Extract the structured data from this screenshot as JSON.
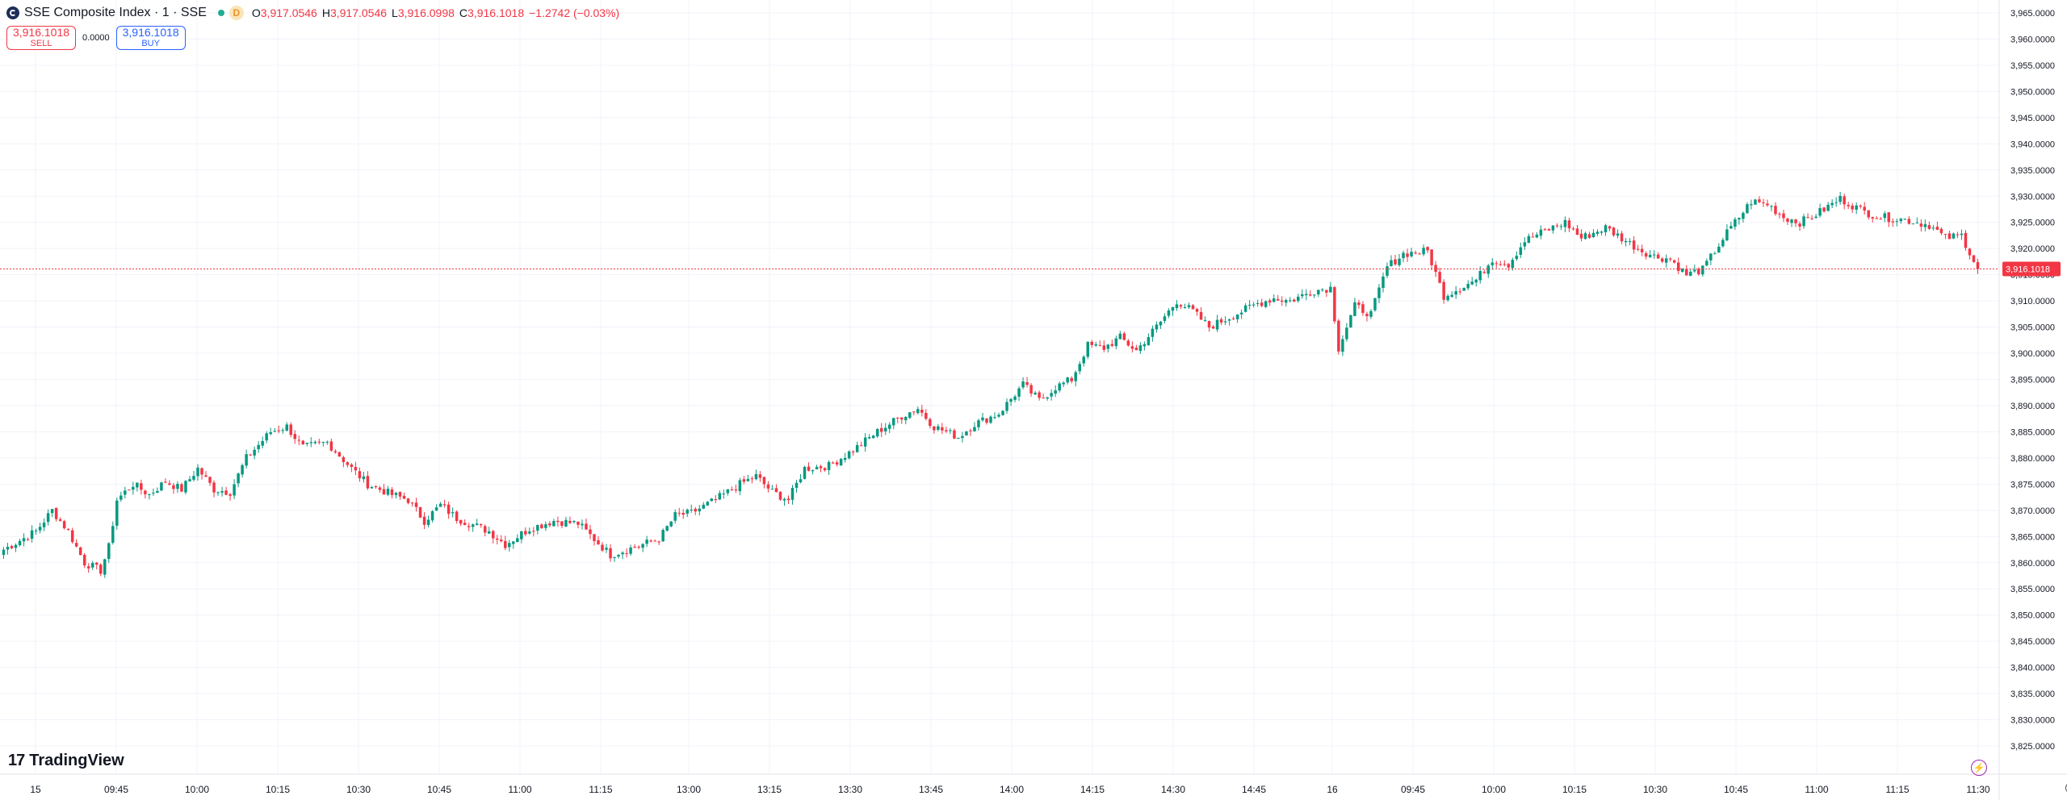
{
  "header": {
    "symbol_title": "SSE Composite Index · 1 · SSE",
    "badge": "D",
    "ohlc": [
      {
        "key": "O",
        "value": "3,917.0546"
      },
      {
        "key": "H",
        "value": "3,917.0546"
      },
      {
        "key": "L",
        "value": "3,916.0998"
      },
      {
        "key": "C",
        "value": "3,916.1018"
      }
    ],
    "change": "−1.2742 (−0.03%)"
  },
  "trade": {
    "sell_price": "3,916.1018",
    "sell_label": "SELL",
    "spread": "0.0000",
    "buy_price": "3,916.1018",
    "buy_label": "BUY"
  },
  "branding": {
    "logo_text": "TradingView",
    "logo_mark": "17"
  },
  "colors": {
    "up": "#089981",
    "down": "#f23645",
    "grid": "#f0f3fa",
    "axis_text": "#131722",
    "price_line": "#f23645"
  },
  "icons": {
    "bolt": "lightning-icon",
    "settings": "gear-icon"
  },
  "chart_data": {
    "type": "candlestick",
    "title": "SSE Composite Index · 1 · SSE",
    "ylim": [
      3825,
      3965
    ],
    "y_ticks": [
      3965,
      3960,
      3955,
      3950,
      3945,
      3940,
      3935,
      3930,
      3925,
      3920,
      3915,
      3910,
      3905,
      3900,
      3895,
      3890,
      3885,
      3880,
      3875,
      3870,
      3865,
      3860,
      3855,
      3850,
      3845,
      3840,
      3835,
      3830,
      3825
    ],
    "x_ticks": [
      "15",
      "09:45",
      "10:00",
      "10:15",
      "10:30",
      "10:45",
      "11:00",
      "11:15",
      "13:00",
      "13:15",
      "13:30",
      "13:45",
      "14:00",
      "14:15",
      "14:30",
      "14:45",
      "16",
      "09:45",
      "10:00",
      "10:15",
      "10:30",
      "10:45",
      "11:00",
      "11:15",
      "11:30"
    ],
    "last_price": 3916.1018,
    "last_price_label": "3,916.1018",
    "waypoints": [
      [
        0,
        3862.5
      ],
      [
        8,
        3866
      ],
      [
        12,
        3870
      ],
      [
        16,
        3866
      ],
      [
        20,
        3860
      ],
      [
        24,
        3858.5
      ],
      [
        26,
        3863
      ],
      [
        28,
        3872
      ],
      [
        32,
        3875
      ],
      [
        36,
        3873
      ],
      [
        40,
        3875.5
      ],
      [
        44,
        3874
      ],
      [
        48,
        3878
      ],
      [
        52,
        3874
      ],
      [
        56,
        3873.5
      ],
      [
        60,
        3880
      ],
      [
        66,
        3885
      ],
      [
        70,
        3886
      ],
      [
        74,
        3882
      ],
      [
        80,
        3883
      ],
      [
        86,
        3878
      ],
      [
        90,
        3875
      ],
      [
        96,
        3873
      ],
      [
        100,
        3872
      ],
      [
        104,
        3868
      ],
      [
        108,
        3871
      ],
      [
        112,
        3868.5
      ],
      [
        120,
        3866
      ],
      [
        124,
        3863.5
      ],
      [
        130,
        3866.5
      ],
      [
        136,
        3868
      ],
      [
        142,
        3867.5
      ],
      [
        148,
        3863
      ],
      [
        150,
        3861.5
      ],
      [
        156,
        3863
      ],
      [
        162,
        3864.5
      ],
      [
        166,
        3869
      ],
      [
        170,
        3869.5
      ],
      [
        176,
        3872
      ],
      [
        182,
        3875
      ],
      [
        186,
        3876.5
      ],
      [
        190,
        3873.5
      ],
      [
        194,
        3872
      ],
      [
        198,
        3878
      ],
      [
        204,
        3878.5
      ],
      [
        210,
        3881.5
      ],
      [
        216,
        3885
      ],
      [
        222,
        3888
      ],
      [
        226,
        3889.5
      ],
      [
        230,
        3886
      ],
      [
        236,
        3884
      ],
      [
        240,
        3886.5
      ],
      [
        246,
        3888.5
      ],
      [
        252,
        3894
      ],
      [
        256,
        3891
      ],
      [
        260,
        3893.5
      ],
      [
        264,
        3895
      ],
      [
        268,
        3901.5
      ],
      [
        272,
        3901
      ],
      [
        276,
        3903
      ],
      [
        280,
        3900.5
      ],
      [
        286,
        3906
      ],
      [
        290,
        3910
      ],
      [
        294,
        3908
      ],
      [
        298,
        3905
      ],
      [
        302,
        3906.5
      ],
      [
        306,
        3908
      ],
      [
        310,
        3909.5
      ],
      [
        314,
        3910.5
      ],
      [
        318,
        3910
      ],
      [
        324,
        3912
      ],
      [
        328,
        3912.5
      ],
      [
        330,
        3901
      ],
      [
        334,
        3909
      ],
      [
        338,
        3907.5
      ],
      [
        342,
        3916.5
      ],
      [
        346,
        3919
      ],
      [
        352,
        3919.5
      ],
      [
        356,
        3911
      ],
      [
        360,
        3912.5
      ],
      [
        364,
        3914
      ],
      [
        368,
        3918
      ],
      [
        372,
        3917
      ],
      [
        376,
        3921.5
      ],
      [
        380,
        3923
      ],
      [
        386,
        3925
      ],
      [
        390,
        3922
      ],
      [
        396,
        3924
      ],
      [
        400,
        3922
      ],
      [
        404,
        3920
      ],
      [
        408,
        3918.5
      ],
      [
        412,
        3918
      ],
      [
        416,
        3915
      ],
      [
        420,
        3916
      ],
      [
        426,
        3923
      ],
      [
        432,
        3929
      ],
      [
        436,
        3928.5
      ],
      [
        440,
        3926
      ],
      [
        444,
        3925
      ],
      [
        448,
        3926.5
      ],
      [
        454,
        3929.5
      ],
      [
        460,
        3927
      ],
      [
        464,
        3926
      ],
      [
        470,
        3925.5
      ],
      [
        476,
        3924.5
      ],
      [
        480,
        3922
      ],
      [
        484,
        3922.5
      ],
      [
        488,
        3916.1
      ]
    ]
  }
}
